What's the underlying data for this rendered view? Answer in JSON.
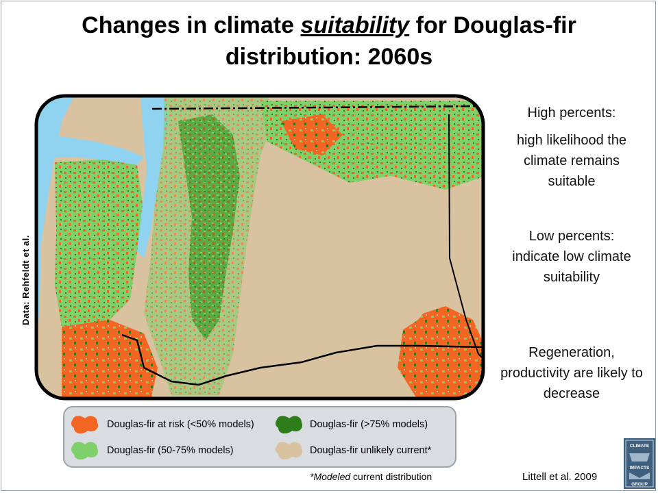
{
  "slide": {
    "title_part1": "Changes in climate ",
    "title_emph": "suitability",
    "title_part2": " for Douglas-fir distribution: 2060s",
    "data_credit": "Data: Rehfeldt et al.",
    "citation": "Littell et al. 2009"
  },
  "notes": {
    "high_heading": "High percents:",
    "high_text": "high likelihood the climate remains suitable",
    "low_heading": "Low percents:",
    "low_text": "indicate low climate suitability",
    "regen_text": "Regeneration, productivity are likely to decrease"
  },
  "legend": {
    "items": [
      {
        "label": "Douglas-fir at risk (<50% models)",
        "color": "#f26522"
      },
      {
        "label": "Douglas-fir (>75% models)",
        "color": "#2e7d1a"
      },
      {
        "label": "Douglas-fir (50-75% models)",
        "color": "#7fcf6a"
      },
      {
        "label": "Douglas-fir unlikely current*",
        "color": "#d8c2a0"
      }
    ]
  },
  "footnote": {
    "emph": "*Modeled",
    "rest": " current distribution"
  },
  "map_colors": {
    "water": "#8fd3f0",
    "land": "#d8c2a0",
    "dark_green": "#2e7d1a",
    "light_green": "#7fcf6a",
    "orange": "#f26522"
  },
  "logo": {
    "top_text": "CLIMATE",
    "middle_text": "IMPACTS",
    "bottom_text": "GROUP"
  }
}
